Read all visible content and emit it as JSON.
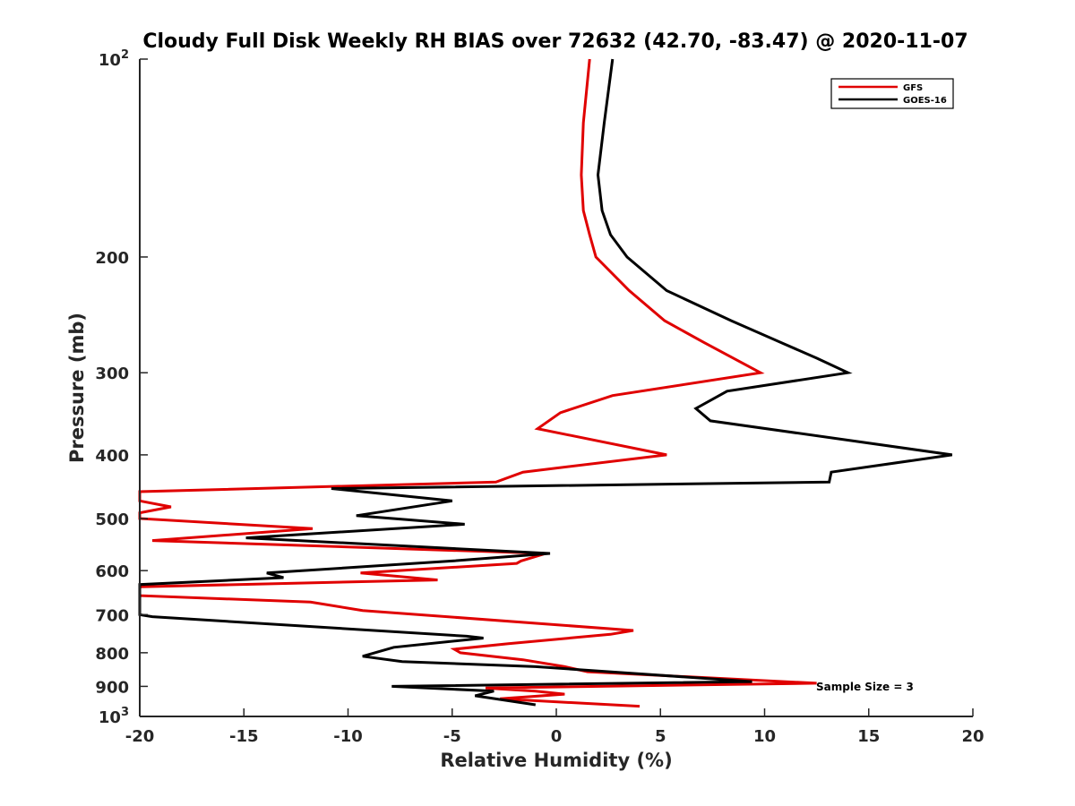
{
  "chart_data": {
    "type": "line",
    "title": "Cloudy Full Disk Weekly RH BIAS over 72632 (42.70, -83.47) @ 2020-11-07",
    "xlabel": "Relative Humidity (%)",
    "ylabel": "Pressure (mb)",
    "xlim": [
      -20,
      20
    ],
    "ylim": [
      100,
      1000
    ],
    "y_scale": "log",
    "y_reversed": true,
    "x_ticks": [
      "-20",
      "-15",
      "-10",
      "-5",
      "0",
      "5",
      "10",
      "15",
      "20"
    ],
    "y_ticks": [
      {
        "value": 100,
        "base": "10",
        "exp": "2"
      },
      {
        "value": 200,
        "label": "200"
      },
      {
        "value": 300,
        "label": "300"
      },
      {
        "value": 400,
        "label": "400"
      },
      {
        "value": 500,
        "label": "500"
      },
      {
        "value": 600,
        "label": "600"
      },
      {
        "value": 700,
        "label": "700"
      },
      {
        "value": 800,
        "label": "800"
      },
      {
        "value": 900,
        "label": "900"
      },
      {
        "value": 1000,
        "base": "10",
        "exp": "3"
      }
    ],
    "grid": false,
    "legend_position": "top-right",
    "annotation": "Sample Size = 3",
    "series": [
      {
        "name": "GFS",
        "color": "#e00000",
        "points": [
          [
            1.6,
            100
          ],
          [
            1.3,
            125
          ],
          [
            1.2,
            150
          ],
          [
            1.3,
            170
          ],
          [
            1.6,
            185
          ],
          [
            1.9,
            200
          ],
          [
            3.5,
            225
          ],
          [
            5.2,
            250
          ],
          [
            7.1,
            270
          ],
          [
            9.8,
            300
          ],
          [
            2.7,
            325
          ],
          [
            0.2,
            345
          ],
          [
            -0.9,
            365
          ],
          [
            5.3,
            400
          ],
          [
            -1.6,
            425
          ],
          [
            -2.9,
            440
          ],
          [
            -20.0,
            455
          ],
          [
            -20.0,
            470
          ],
          [
            -18.5,
            480
          ],
          [
            -20.0,
            490
          ],
          [
            -20.0,
            500
          ],
          [
            -11.7,
            518
          ],
          [
            -19.4,
            540
          ],
          [
            -0.5,
            565
          ],
          [
            -1.7,
            580
          ],
          [
            -1.9,
            585
          ],
          [
            -9.4,
            605
          ],
          [
            -5.7,
            620
          ],
          [
            -20.0,
            635
          ],
          [
            -20.0,
            655
          ],
          [
            -11.8,
            670
          ],
          [
            -9.3,
            690
          ],
          [
            3.7,
            740
          ],
          [
            2.6,
            750
          ],
          [
            -2.3,
            775
          ],
          [
            -4.9,
            790
          ],
          [
            -4.6,
            800
          ],
          [
            -1.6,
            820
          ],
          [
            0.4,
            840
          ],
          [
            1.5,
            855
          ],
          [
            12.5,
            890
          ],
          [
            -3.4,
            905
          ],
          [
            -1.0,
            915
          ],
          [
            0.4,
            925
          ],
          [
            -2.7,
            940
          ],
          [
            4.0,
            965
          ]
        ]
      },
      {
        "name": "GOES-16",
        "color": "#000000",
        "points": [
          [
            2.7,
            100
          ],
          [
            2.3,
            125
          ],
          [
            2.0,
            150
          ],
          [
            2.2,
            170
          ],
          [
            2.6,
            185
          ],
          [
            3.4,
            200
          ],
          [
            5.3,
            225
          ],
          [
            8.4,
            250
          ],
          [
            10.8,
            270
          ],
          [
            12.5,
            285
          ],
          [
            14.0,
            300
          ],
          [
            8.2,
            320
          ],
          [
            6.7,
            340
          ],
          [
            7.4,
            355
          ],
          [
            19.0,
            400
          ],
          [
            13.2,
            425
          ],
          [
            13.1,
            440
          ],
          [
            -10.8,
            450
          ],
          [
            -5.0,
            470
          ],
          [
            -9.6,
            495
          ],
          [
            -4.4,
            510
          ],
          [
            -14.9,
            535
          ],
          [
            -0.3,
            565
          ],
          [
            -5.0,
            580
          ],
          [
            -13.9,
            605
          ],
          [
            -13.1,
            615
          ],
          [
            -20.0,
            630
          ],
          [
            -20.0,
            700
          ],
          [
            -19.4,
            705
          ],
          [
            -4.3,
            755
          ],
          [
            -3.5,
            760
          ],
          [
            -7.8,
            785
          ],
          [
            -9.3,
            810
          ],
          [
            -7.4,
            825
          ],
          [
            -1.0,
            840
          ],
          [
            9.4,
            885
          ],
          [
            -7.9,
            900
          ],
          [
            -3.0,
            915
          ],
          [
            -3.9,
            930
          ],
          [
            -1.0,
            960
          ]
        ]
      }
    ]
  }
}
